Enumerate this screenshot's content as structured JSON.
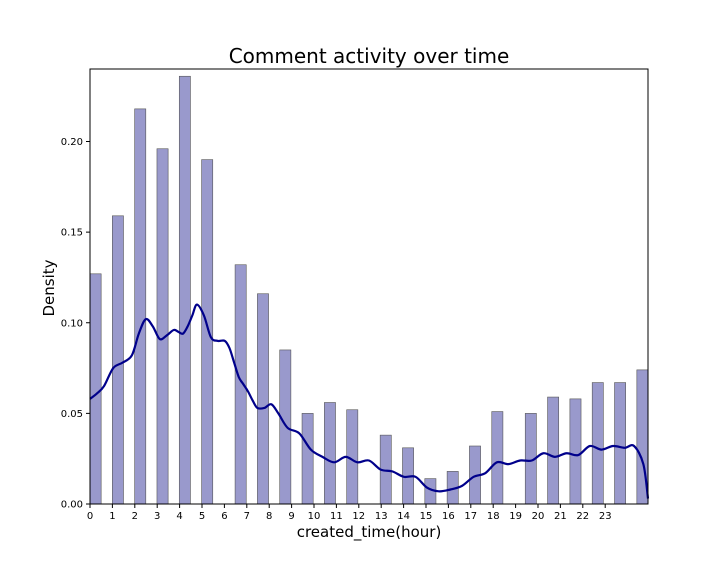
{
  "chart_data": {
    "type": "bar",
    "title": "Comment activity over time",
    "xlabel": "created_time(hour)",
    "ylabel": "Density",
    "xlim": [
      0,
      24
    ],
    "ylim": [
      0,
      0.24
    ],
    "x_ticks": [
      0,
      1,
      2,
      3,
      4,
      5,
      6,
      7,
      8,
      9,
      10,
      11,
      12,
      13,
      14,
      15,
      16,
      17,
      18,
      19,
      20,
      21,
      22,
      23
    ],
    "y_ticks": [
      0.0,
      0.05,
      0.1,
      0.15,
      0.2
    ],
    "y_tick_labels": [
      "0.00",
      "0.05",
      "0.10",
      "0.15",
      "0.20"
    ],
    "bar_color": "#9999cc",
    "bar_edge_color": "#555555",
    "kde_color": "#00008b",
    "grid": false,
    "bars": [
      {
        "x": 0.25,
        "value": 0.127
      },
      {
        "x": 1.25,
        "value": 0.159
      },
      {
        "x": 2.25,
        "value": 0.218
      },
      {
        "x": 3.25,
        "value": 0.196
      },
      {
        "x": 4.25,
        "value": 0.236
      },
      {
        "x": 5.25,
        "value": 0.19
      },
      {
        "x": 6.75,
        "value": 0.132
      },
      {
        "x": 7.75,
        "value": 0.116
      },
      {
        "x": 8.75,
        "value": 0.085
      },
      {
        "x": 9.75,
        "value": 0.05
      },
      {
        "x": 10.75,
        "value": 0.056
      },
      {
        "x": 11.75,
        "value": 0.052
      },
      {
        "x": 13.25,
        "value": 0.038
      },
      {
        "x": 14.25,
        "value": 0.031
      },
      {
        "x": 15.25,
        "value": 0.014
      },
      {
        "x": 16.25,
        "value": 0.018
      },
      {
        "x": 17.25,
        "value": 0.032
      },
      {
        "x": 18.25,
        "value": 0.051
      },
      {
        "x": 19.75,
        "value": 0.05
      },
      {
        "x": 20.75,
        "value": 0.059
      },
      {
        "x": 21.75,
        "value": 0.058
      },
      {
        "x": 22.75,
        "value": 0.067
      },
      {
        "x": 23.75,
        "value": 0.067
      },
      {
        "x": 24.75,
        "value": 0.074
      }
    ],
    "kde": {
      "x": [
        0,
        0.3,
        0.6,
        1.0,
        1.4,
        1.8,
        2.1,
        2.4,
        2.7,
        3.0,
        3.3,
        3.6,
        3.8,
        4.0,
        4.2,
        4.4,
        4.6,
        4.9,
        5.2,
        5.5,
        5.8,
        6.0,
        6.2,
        6.4,
        6.6,
        6.8,
        7.0,
        7.2,
        7.5,
        7.8,
        8.1,
        8.5,
        9.0,
        9.5,
        10.0,
        10.5,
        11.0,
        11.5,
        12.0,
        12.5,
        13.0,
        13.5,
        14.0,
        14.5,
        15.0,
        15.5,
        16.0,
        16.5,
        17.0,
        17.5,
        18.0,
        18.5,
        19.0,
        19.5,
        20.0,
        20.5,
        21.0,
        21.5,
        22.0,
        22.5,
        23.0,
        23.4,
        23.8,
        24.0
      ],
      "y": [
        0.058,
        0.061,
        0.065,
        0.075,
        0.078,
        0.082,
        0.094,
        0.102,
        0.098,
        0.091,
        0.093,
        0.096,
        0.095,
        0.094,
        0.098,
        0.104,
        0.11,
        0.104,
        0.092,
        0.09,
        0.09,
        0.086,
        0.078,
        0.07,
        0.066,
        0.062,
        0.057,
        0.053,
        0.053,
        0.055,
        0.05,
        0.042,
        0.039,
        0.03,
        0.026,
        0.023,
        0.026,
        0.023,
        0.024,
        0.019,
        0.018,
        0.015,
        0.015,
        0.009,
        0.007,
        0.008,
        0.01,
        0.015,
        0.017,
        0.023,
        0.022,
        0.024,
        0.024,
        0.028,
        0.026,
        0.028,
        0.027,
        0.032,
        0.03,
        0.032,
        0.031,
        0.032,
        0.022,
        0.003
      ]
    }
  }
}
